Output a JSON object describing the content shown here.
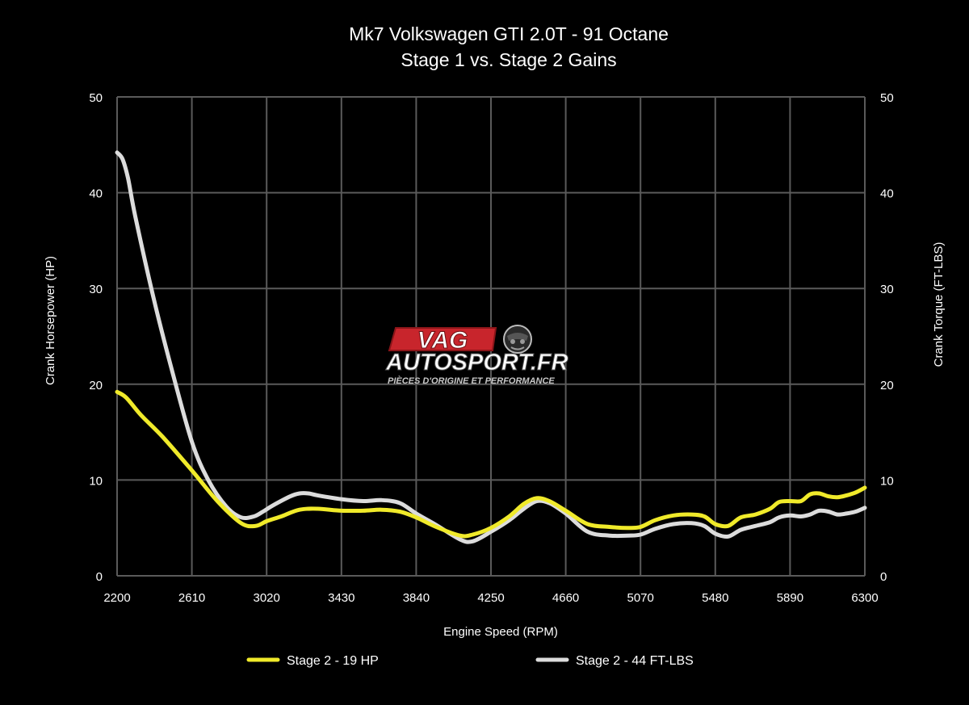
{
  "colors": {
    "background": "#000000",
    "grid": "#5a5a5a",
    "text": "#ffffff",
    "hp_line": "#f0ea2a",
    "tq_line": "#dcdcdc",
    "logo_red": "#c8252c"
  },
  "logo": {
    "line1": "VAG",
    "line2": "AUTOSPORT.FR",
    "tagline": "PIÈCES D'ORIGINE ET PERFORMANCE",
    "icon": "driver-helmet-icon"
  },
  "chart_data": {
    "type": "line",
    "title": "Mk7 Volkswagen GTI 2.0T - 91 Octane",
    "subtitle": "Stage 1 vs. Stage 2 Gains",
    "xlabel": "Engine Speed (RPM)",
    "ylabel_left": "Crank Horsepower (HP)",
    "ylabel_right": "Crank Torque (FT-LBS)",
    "xlim": [
      2200,
      6300
    ],
    "ylim": [
      0,
      50
    ],
    "x_ticks": [
      "2200",
      "2610",
      "3020",
      "3430",
      "3840",
      "4250",
      "4660",
      "5070",
      "5480",
      "5890",
      "6300"
    ],
    "y_ticks": [
      "0",
      "10",
      "20",
      "30",
      "40",
      "50"
    ],
    "grid": true,
    "legend_position": "bottom",
    "series": [
      {
        "name": "Stage 2 - 19 HP",
        "axis": "left",
        "color": "#f0ea2a",
        "x": [
          2200,
          2250,
          2330,
          2450,
          2610,
          2750,
          2880,
          2960,
          3020,
          3100,
          3200,
          3300,
          3430,
          3550,
          3650,
          3750,
          3840,
          3950,
          4080,
          4150,
          4250,
          4350,
          4430,
          4500,
          4570,
          4660,
          4780,
          4900,
          5000,
          5070,
          5150,
          5250,
          5350,
          5420,
          5480,
          5550,
          5620,
          5700,
          5780,
          5830,
          5890,
          5950,
          6000,
          6050,
          6100,
          6150,
          6200,
          6250,
          6300
        ],
        "y": [
          19.2,
          18.6,
          16.8,
          14.5,
          11.0,
          7.8,
          5.5,
          5.2,
          5.7,
          6.2,
          6.9,
          7.0,
          6.8,
          6.8,
          6.9,
          6.7,
          6.1,
          5.1,
          4.2,
          4.3,
          5.0,
          6.2,
          7.5,
          8.1,
          7.8,
          6.8,
          5.4,
          5.1,
          5.0,
          5.1,
          5.8,
          6.3,
          6.4,
          6.2,
          5.4,
          5.2,
          6.1,
          6.4,
          7.0,
          7.7,
          7.8,
          7.8,
          8.5,
          8.6,
          8.3,
          8.2,
          8.4,
          8.7,
          9.2
        ]
      },
      {
        "name": "Stage 2 - 44 FT-LBS",
        "axis": "right",
        "color": "#dcdcdc",
        "x": [
          2200,
          2230,
          2260,
          2300,
          2400,
          2500,
          2610,
          2700,
          2800,
          2880,
          2950,
          3000,
          3050,
          3150,
          3200,
          3250,
          3300,
          3430,
          3550,
          3650,
          3750,
          3840,
          3950,
          4080,
          4150,
          4250,
          4350,
          4430,
          4500,
          4570,
          4660,
          4780,
          4900,
          5000,
          5070,
          5150,
          5250,
          5350,
          5420,
          5480,
          5550,
          5620,
          5700,
          5780,
          5830,
          5890,
          5950,
          6000,
          6050,
          6100,
          6150,
          6200,
          6250,
          6300
        ],
        "y": [
          44.2,
          43.5,
          41.5,
          37.5,
          29.0,
          21.5,
          14.0,
          10.0,
          7.2,
          6.1,
          6.2,
          6.7,
          7.3,
          8.3,
          8.6,
          8.6,
          8.4,
          8.0,
          7.8,
          7.9,
          7.6,
          6.5,
          5.3,
          3.8,
          3.6,
          4.6,
          5.8,
          7.0,
          7.8,
          7.6,
          6.5,
          4.6,
          4.2,
          4.2,
          4.3,
          4.9,
          5.4,
          5.5,
          5.2,
          4.4,
          4.1,
          4.8,
          5.2,
          5.6,
          6.1,
          6.3,
          6.2,
          6.4,
          6.8,
          6.7,
          6.4,
          6.5,
          6.7,
          7.1
        ]
      }
    ]
  }
}
